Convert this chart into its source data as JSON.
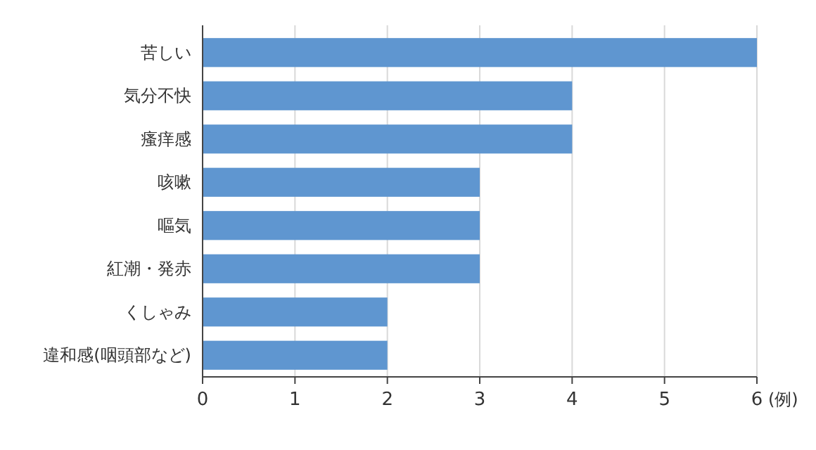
{
  "chart_data": {
    "type": "bar",
    "orientation": "horizontal",
    "xlabel": "(例)",
    "categories": [
      "苦しい",
      "気分不快",
      "瘙痒感",
      "咳嗽",
      "嘔気",
      "紅潮・発赤",
      "くしゃみ",
      "違和感(咽頭部など)"
    ],
    "values": [
      6,
      4,
      4,
      3,
      3,
      3,
      2,
      2
    ],
    "color": "#5f96d0",
    "xlim": [
      0,
      6
    ],
    "xticks": [
      0,
      1,
      2,
      3,
      4,
      5,
      6
    ],
    "grid": "x"
  }
}
